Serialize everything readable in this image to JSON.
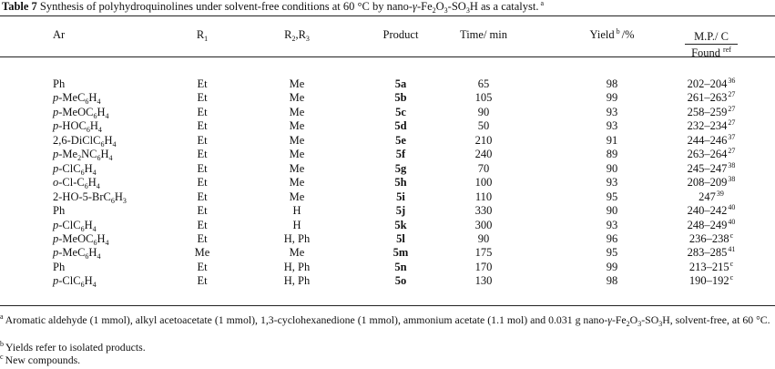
{
  "caption": {
    "label": "Table 7",
    "text": "Synthesis of polyhydroquinolines under solvent-free conditions at 60 °C by nano-γ-Fe2O3-SO3H as a catalyst.",
    "note": "a"
  },
  "table": {
    "headers": {
      "ar": "Ar",
      "r1": "R1",
      "r23": "R2,R3",
      "product": "Product",
      "time": "Time/ min",
      "yield": {
        "text": "Yield",
        "note": "b",
        "unit": "/%"
      },
      "mp": {
        "text": "M.P./ C",
        "found": "Found",
        "ref": "ref"
      }
    },
    "rows": [
      [
        "Ph",
        "Et",
        "Me",
        "5a",
        65,
        98,
        {
          "mp": "202–204",
          "ref": "36"
        }
      ],
      [
        "p-MeC6H4",
        "Et",
        "Me",
        "5b",
        105,
        99,
        {
          "mp": "261–263",
          "ref": "27"
        }
      ],
      [
        "p-MeOC6H4",
        "Et",
        "Me",
        "5c",
        90,
        93,
        {
          "mp": "258–259",
          "ref": "27"
        }
      ],
      [
        "p-HOC6H4",
        "Et",
        "Me",
        "5d",
        50,
        93,
        {
          "mp": "232–234",
          "ref": "27"
        }
      ],
      [
        "2,6-DiClC6H4",
        "Et",
        "Me",
        "5e",
        210,
        91,
        {
          "mp": "244–246",
          "ref": "37"
        }
      ],
      [
        "p-Me2NC6H4",
        "Et",
        "Me",
        "5f",
        240,
        89,
        {
          "mp": "263–264",
          "ref": "27"
        }
      ],
      [
        "p-ClC6H4",
        "Et",
        "Me",
        "5g",
        70,
        90,
        {
          "mp": "245–247",
          "ref": "38"
        }
      ],
      [
        "o-Cl-C6H4",
        "Et",
        "Me",
        "5h",
        100,
        93,
        {
          "mp": "208–209",
          "ref": "38"
        }
      ],
      [
        "2-HO-5-BrC6H3",
        "Et",
        "Me",
        "5i",
        110,
        95,
        {
          "mp": "247",
          "ref": "39"
        }
      ],
      [
        "Ph",
        "Et",
        "H",
        "5j",
        330,
        90,
        {
          "mp": "240–242",
          "ref": "40"
        }
      ],
      [
        "p-ClC6H4",
        "Et",
        "H",
        "5k",
        300,
        93,
        {
          "mp": "248–249",
          "ref": "40"
        }
      ],
      [
        "p-MeOC6H4",
        "Et",
        "H, Ph",
        "5l",
        90,
        96,
        {
          "mp": "236–238",
          "ref": "c"
        }
      ],
      [
        "p-MeC6H4",
        "Me",
        "Me",
        "5m",
        175,
        95,
        {
          "mp": "283–285",
          "ref": "41"
        }
      ],
      [
        "Ph",
        "Et",
        "H, Ph",
        "5n",
        170,
        99,
        {
          "mp": "213–215",
          "ref": "c"
        }
      ],
      [
        "p-ClC6H4",
        "Et",
        "H, Ph",
        "5o",
        130,
        98,
        {
          "mp": "190–192",
          "ref": "c"
        }
      ]
    ]
  },
  "footnotes": [
    {
      "mark": "a",
      "text": "Aromatic aldehyde (1 mmol), alkyl acetoacetate (1 mmol), 1,3-cyclohexanedione (1 mmol), ammonium acetate (1.1 mol) and 0.031 g nano-γ-Fe2O3-SO3H, solvent-free, at 60 °C."
    },
    {
      "mark": "b",
      "text": "Yields refer to isolated products."
    },
    {
      "mark": "c",
      "text": "New compounds."
    }
  ]
}
